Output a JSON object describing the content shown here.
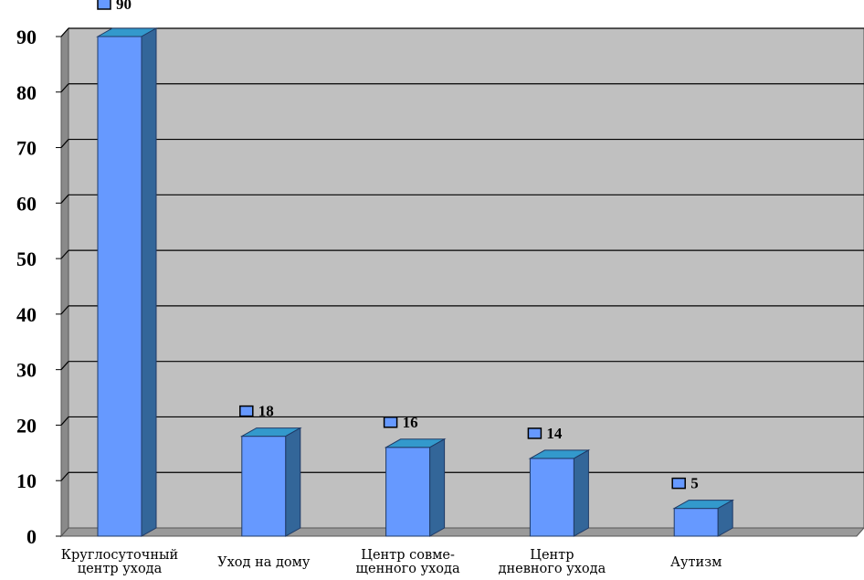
{
  "chart_data": {
    "type": "bar",
    "categories": [
      [
        "Круглосуточный",
        "центр ухода"
      ],
      [
        "Уход на дому"
      ],
      [
        "Центр совме-",
        "щенного ухода"
      ],
      [
        "Центр",
        "дневного ухода"
      ],
      [
        "Аутизм"
      ]
    ],
    "values": [
      90,
      18,
      16,
      14,
      5
    ],
    "data_labels": [
      "90",
      "18",
      "16",
      "14",
      "5"
    ],
    "y_ticks": [
      "0",
      "10",
      "20",
      "30",
      "40",
      "50",
      "60",
      "70",
      "80",
      "90"
    ],
    "ylim": [
      0,
      90
    ],
    "grid": true,
    "legend": "none",
    "colors": {
      "plot_back": "#c0c0c0",
      "plot_side": "#8a8a8a",
      "floor": "#9a9a9a",
      "bar_front": "#6699ff",
      "bar_top": "#3399cc",
      "bar_side": "#336699",
      "marker": "#6699ff"
    }
  }
}
